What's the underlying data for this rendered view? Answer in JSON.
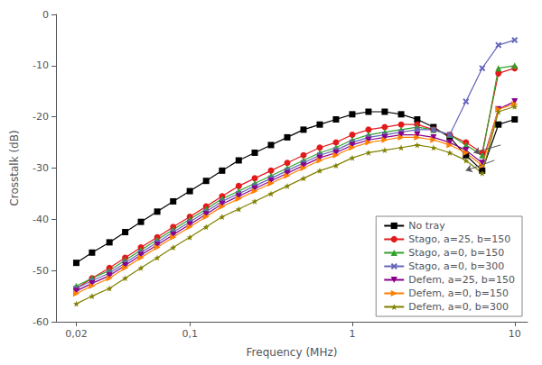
{
  "chart_data": {
    "type": "line",
    "xlabel": "Frequency (MHz)",
    "ylabel": "Crosstalk (dB)",
    "log": "x",
    "grid": false,
    "legend": "lower right",
    "xlim": [
      0.015,
      12.0
    ],
    "ylim": [
      -60,
      0
    ],
    "xticks": [
      {
        "value": 0.02,
        "label": "0,02"
      },
      {
        "value": 0.1,
        "label": "0,1"
      },
      1,
      10
    ],
    "yticks": [
      0,
      -10,
      -20,
      -30,
      -40,
      -50,
      -60
    ],
    "x": [
      0.02,
      0.025,
      0.032,
      0.04,
      0.05,
      0.063,
      0.079,
      0.1,
      0.126,
      0.158,
      0.2,
      0.251,
      0.316,
      0.398,
      0.501,
      0.631,
      0.794,
      1.0,
      1.259,
      1.585,
      2.0,
      2.512,
      3.162,
      3.981,
      5.012,
      6.31,
      7.943,
      10.0
    ],
    "series": [
      {
        "name": "No tray",
        "color": "#000000",
        "marker": "square",
        "line_style": "solid",
        "values": [
          -48.5,
          -46.5,
          -44.5,
          -42.5,
          -40.5,
          -38.5,
          -36.5,
          -34.5,
          -32.5,
          -30.5,
          -28.5,
          -27.0,
          -25.5,
          -24.0,
          -22.5,
          -21.5,
          -20.5,
          -19.5,
          -19.0,
          -19.0,
          -19.5,
          -20.5,
          -22.0,
          -24.0,
          -27.5,
          -30.5,
          -21.5,
          -20.5
        ]
      },
      {
        "name": "Stago, a=25, b=150",
        "color": "#e31a1c",
        "marker": "circle",
        "line_style": "solid",
        "values": [
          -53.5,
          -51.5,
          -49.5,
          -47.5,
          -45.5,
          -43.5,
          -41.5,
          -39.5,
          -37.5,
          -35.5,
          -33.5,
          -32.0,
          -30.5,
          -29.0,
          -27.5,
          -26.0,
          -25.0,
          -23.5,
          -22.5,
          -22.0,
          -21.5,
          -21.5,
          -22.5,
          -23.5,
          -25.0,
          -27.0,
          -11.5,
          -10.5
        ]
      },
      {
        "name": "Stago, a=0, b=150",
        "color": "#33a02c",
        "marker": "triangle-up",
        "line_style": "solid",
        "values": [
          -53.0,
          -51.5,
          -50.0,
          -48.0,
          -46.0,
          -44.0,
          -42.0,
          -40.0,
          -38.0,
          -36.0,
          -34.5,
          -33.0,
          -31.5,
          -30.0,
          -28.5,
          -27.0,
          -26.0,
          -24.5,
          -23.5,
          -23.0,
          -22.5,
          -22.0,
          -22.5,
          -23.5,
          -25.5,
          -27.5,
          -10.5,
          -10.0
        ]
      },
      {
        "name": "Stago, a=0, b=300",
        "color": "#6666bb",
        "marker": "x",
        "line_style": "solid",
        "values": [
          -53.5,
          -52.0,
          -50.5,
          -48.5,
          -46.5,
          -44.5,
          -42.5,
          -40.5,
          -38.5,
          -36.5,
          -35.0,
          -33.5,
          -32.0,
          -30.5,
          -29.0,
          -27.5,
          -26.5,
          -25.0,
          -24.0,
          -23.5,
          -23.0,
          -22.5,
          -22.5,
          -23.5,
          -17.0,
          -10.5,
          -6.0,
          -5.0
        ]
      },
      {
        "name": "Defem, a=25, b=150",
        "color": "#8b008b",
        "marker": "triangle-down",
        "line_style": "solid",
        "values": [
          -54.0,
          -52.5,
          -51.0,
          -49.0,
          -47.0,
          -45.0,
          -43.0,
          -41.0,
          -39.0,
          -37.0,
          -35.5,
          -34.0,
          -32.5,
          -31.0,
          -29.5,
          -28.0,
          -27.0,
          -25.5,
          -24.5,
          -24.0,
          -23.5,
          -23.5,
          -24.0,
          -25.0,
          -26.5,
          -29.0,
          -18.5,
          -17.0
        ]
      },
      {
        "name": "Defem, a=0, b=150",
        "color": "#ff7f00",
        "marker": "triangle-right",
        "line_style": "solid",
        "values": [
          -54.5,
          -53.0,
          -51.5,
          -49.5,
          -47.5,
          -45.5,
          -43.5,
          -41.5,
          -39.5,
          -37.5,
          -36.0,
          -34.5,
          -33.0,
          -31.5,
          -30.0,
          -28.5,
          -27.5,
          -26.0,
          -25.0,
          -24.5,
          -24.0,
          -24.0,
          -24.5,
          -25.5,
          -27.0,
          -29.5,
          -18.5,
          -17.5
        ]
      },
      {
        "name": "Defem, a=0, b=300",
        "color": "#808000",
        "marker": "star",
        "line_style": "solid",
        "values": [
          -56.5,
          -55.0,
          -53.5,
          -51.5,
          -49.5,
          -47.5,
          -45.5,
          -43.5,
          -41.5,
          -39.5,
          -38.0,
          -36.5,
          -35.0,
          -33.5,
          -32.0,
          -30.5,
          -29.5,
          -28.0,
          -27.0,
          -26.5,
          -26.0,
          -25.5,
          -26.0,
          -27.0,
          -28.5,
          -31.0,
          -19.0,
          -18.0
        ]
      }
    ],
    "annotations": [
      {
        "type": "arrow",
        "xy": [
          5.0,
          -30.5
        ],
        "xytext": [
          7.5,
          -28.5
        ]
      },
      {
        "type": "arrow",
        "xy": [
          5.6,
          -27.0
        ],
        "xytext": [
          8.2,
          -25.5
        ]
      }
    ]
  }
}
